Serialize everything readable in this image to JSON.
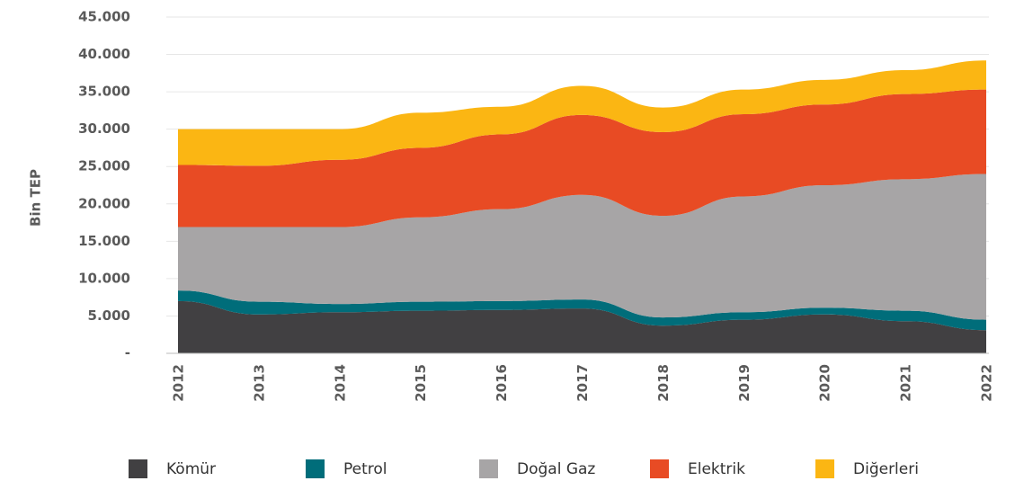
{
  "chart_data": {
    "type": "stacked_area",
    "y_axis_label": "Bin TEP",
    "categories": [
      "2012",
      "2013",
      "2014",
      "2015",
      "2016",
      "2017",
      "2018",
      "2019",
      "2020",
      "2021",
      "2022"
    ],
    "series": [
      {
        "name": "Kömür",
        "color": "#414042",
        "values": [
          7000,
          5200,
          5500,
          5700,
          5800,
          6000,
          3700,
          4500,
          5200,
          4300,
          3100
        ]
      },
      {
        "name": "Petrol",
        "color": "#006d7a",
        "values": [
          1400,
          1700,
          1100,
          1200,
          1200,
          1200,
          1100,
          1000,
          900,
          1400,
          1400
        ]
      },
      {
        "name": "Doğal Gaz",
        "color": "#a7a5a6",
        "values": [
          8500,
          10000,
          10300,
          11300,
          12300,
          14000,
          13600,
          15500,
          16400,
          17600,
          19500
        ]
      },
      {
        "name": "Elektrik",
        "color": "#e84b24",
        "values": [
          8300,
          8200,
          9000,
          9300,
          10000,
          10700,
          11200,
          11000,
          10800,
          11400,
          11300
        ]
      },
      {
        "name": "Diğerleri",
        "color": "#fbb613",
        "values": [
          4800,
          4900,
          4100,
          4700,
          3700,
          3900,
          3300,
          3300,
          3300,
          3200,
          3900
        ]
      }
    ],
    "ylim": [
      0,
      45000
    ],
    "yticks": [
      {
        "value": 0,
        "label": "-"
      },
      {
        "value": 5000,
        "label": "5.000"
      },
      {
        "value": 10000,
        "label": "10.000"
      },
      {
        "value": 15000,
        "label": "15.000"
      },
      {
        "value": 20000,
        "label": "20.000"
      },
      {
        "value": 25000,
        "label": "25.000"
      },
      {
        "value": 30000,
        "label": "30.000"
      },
      {
        "value": 35000,
        "label": "35.000"
      },
      {
        "value": 40000,
        "label": "40.000"
      },
      {
        "value": 45000,
        "label": "45.000"
      }
    ],
    "grid": true
  }
}
